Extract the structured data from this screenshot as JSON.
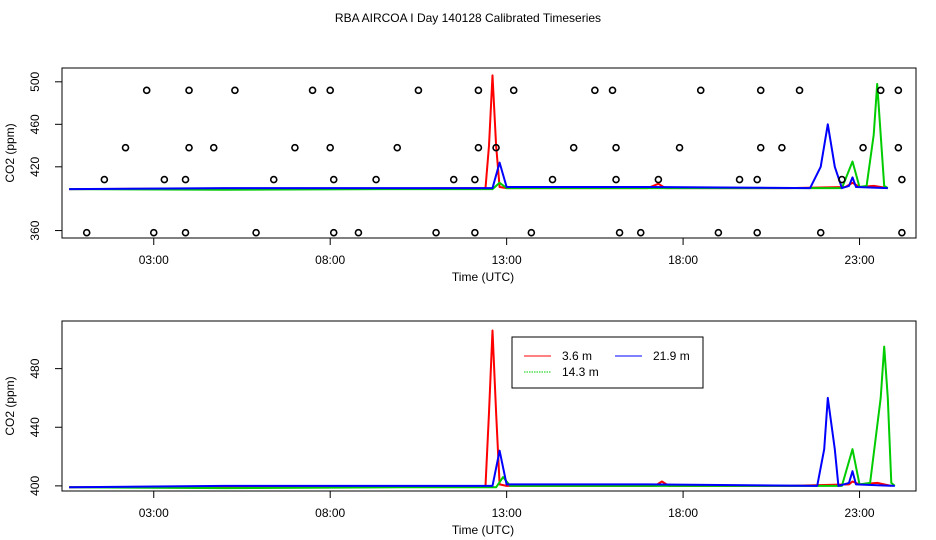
{
  "figure_title": "RBA AIRCOA I  Day 140128  Calibrated Timeseries",
  "colors": {
    "3.6 m": "#ff0000",
    "14.3 m": "#00cc00",
    "21.9 m": "#0000ff",
    "markers": "#000000"
  },
  "chart_data": [
    {
      "type": "line",
      "panel": "top",
      "xlabel": "Time (UTC)",
      "ylabel": "CO2 (ppm)",
      "xlim": [
        0.4,
        24.6
      ],
      "ylim": [
        353,
        513
      ],
      "x_ticks": [
        3,
        8,
        13,
        18,
        23
      ],
      "x_tick_labels": [
        "03:00",
        "08:00",
        "13:00",
        "18:00",
        "23:00"
      ],
      "y_ticks": [
        360,
        420,
        460,
        500
      ],
      "y_tick_labels": [
        "360",
        "420",
        "460",
        "500"
      ],
      "grid": false,
      "legend": null,
      "series": [
        {
          "name": "3.6 m",
          "color": "#ff0000",
          "points": [
            [
              0.6,
              399
            ],
            [
              5,
              399.5
            ],
            [
              10,
              399.5
            ],
            [
              12.4,
              400
            ],
            [
              12.5,
              440
            ],
            [
              12.6,
              506
            ],
            [
              12.7,
              440
            ],
            [
              12.8,
              401
            ],
            [
              13,
              400
            ],
            [
              17,
              400
            ],
            [
              17.3,
              404
            ],
            [
              17.5,
              400
            ],
            [
              21,
              400
            ],
            [
              22.6,
              401
            ],
            [
              22.8,
              405
            ],
            [
              23.0,
              401
            ],
            [
              23.4,
              402
            ],
            [
              23.8,
              400
            ]
          ]
        },
        {
          "name": "14.3 m",
          "color": "#00cc00",
          "points": [
            [
              0.6,
              399
            ],
            [
              5,
              398.5
            ],
            [
              10,
              399
            ],
            [
              12.6,
              399
            ],
            [
              12.8,
              405
            ],
            [
              13,
              400
            ],
            [
              17,
              400
            ],
            [
              22.5,
              400
            ],
            [
              22.8,
              425
            ],
            [
              23.0,
              401
            ],
            [
              23.2,
              402
            ],
            [
              23.4,
              450
            ],
            [
              23.5,
              498
            ],
            [
              23.6,
              450
            ],
            [
              23.7,
              402
            ],
            [
              23.8,
              400
            ]
          ]
        },
        {
          "name": "21.9 m",
          "color": "#0000ff",
          "points": [
            [
              0.6,
              399
            ],
            [
              5,
              400
            ],
            [
              10,
              400
            ],
            [
              12.6,
              400
            ],
            [
              12.8,
              424
            ],
            [
              13.0,
              401
            ],
            [
              17,
              401
            ],
            [
              21.6,
              400
            ],
            [
              21.9,
              420
            ],
            [
              22.1,
              460
            ],
            [
              22.3,
              420
            ],
            [
              22.5,
              400
            ],
            [
              22.7,
              402
            ],
            [
              22.8,
              410
            ],
            [
              22.9,
              401
            ],
            [
              23.8,
              400
            ]
          ]
        }
      ],
      "markers": [
        [
          1.1,
          358
        ],
        [
          1.6,
          408
        ],
        [
          2.2,
          438
        ],
        [
          2.8,
          492
        ],
        [
          3.0,
          358
        ],
        [
          3.3,
          408
        ],
        [
          3.9,
          358
        ],
        [
          3.9,
          408
        ],
        [
          4.0,
          438
        ],
        [
          4.0,
          492
        ],
        [
          4.7,
          438
        ],
        [
          5.3,
          492
        ],
        [
          5.9,
          358
        ],
        [
          6.4,
          408
        ],
        [
          7.0,
          438
        ],
        [
          7.5,
          492
        ],
        [
          8.0,
          492
        ],
        [
          8.0,
          438
        ],
        [
          8.1,
          408
        ],
        [
          8.1,
          358
        ],
        [
          8.8,
          358
        ],
        [
          9.3,
          408
        ],
        [
          9.9,
          438
        ],
        [
          10.5,
          492
        ],
        [
          11.0,
          358
        ],
        [
          11.5,
          408
        ],
        [
          12.1,
          408
        ],
        [
          12.1,
          358
        ],
        [
          12.2,
          438
        ],
        [
          12.2,
          492
        ],
        [
          12.7,
          438
        ],
        [
          13.2,
          492
        ],
        [
          13.7,
          358
        ],
        [
          14.3,
          408
        ],
        [
          14.9,
          438
        ],
        [
          15.5,
          492
        ],
        [
          16.0,
          492
        ],
        [
          16.1,
          438
        ],
        [
          16.1,
          408
        ],
        [
          16.2,
          358
        ],
        [
          16.8,
          358
        ],
        [
          17.3,
          408
        ],
        [
          17.9,
          438
        ],
        [
          18.5,
          492
        ],
        [
          19.0,
          358
        ],
        [
          19.6,
          408
        ],
        [
          20.1,
          358
        ],
        [
          20.1,
          408
        ],
        [
          20.2,
          438
        ],
        [
          20.2,
          492
        ],
        [
          20.8,
          438
        ],
        [
          21.3,
          492
        ],
        [
          21.9,
          358
        ],
        [
          22.5,
          408
        ],
        [
          23.1,
          438
        ],
        [
          23.6,
          492
        ],
        [
          24.1,
          492
        ],
        [
          24.1,
          438
        ],
        [
          24.2,
          408
        ],
        [
          24.2,
          358
        ]
      ]
    },
    {
      "type": "line",
      "panel": "bottom",
      "xlabel": "Time (UTC)",
      "ylabel": "CO2 (ppm)",
      "xlim": [
        0.4,
        24.6
      ],
      "ylim": [
        396.5,
        512.5
      ],
      "x_ticks": [
        3,
        8,
        13,
        18,
        23
      ],
      "x_tick_labels": [
        "03:00",
        "08:00",
        "13:00",
        "18:00",
        "23:00"
      ],
      "y_ticks": [
        400,
        440,
        480
      ],
      "y_tick_labels": [
        "400",
        "440",
        "480"
      ],
      "grid": false,
      "legend": "top-center",
      "series": [
        {
          "name": "3.6 m",
          "color": "#ff0000",
          "points": [
            [
              0.6,
              399
            ],
            [
              5,
              399.5
            ],
            [
              10,
              399.5
            ],
            [
              12.4,
              400
            ],
            [
              12.5,
              450
            ],
            [
              12.6,
              506
            ],
            [
              12.7,
              450
            ],
            [
              12.8,
              401
            ],
            [
              13,
              400
            ],
            [
              17.2,
              400
            ],
            [
              17.4,
              403
            ],
            [
              17.6,
              400
            ],
            [
              21,
              400
            ],
            [
              22.7,
              401
            ],
            [
              22.8,
              403
            ],
            [
              23.0,
              401
            ],
            [
              23.5,
              402
            ],
            [
              23.9,
              400
            ]
          ]
        },
        {
          "name": "14.3 m",
          "color": "#00cc00",
          "points": [
            [
              0.6,
              399
            ],
            [
              5,
              398.5
            ],
            [
              10,
              399
            ],
            [
              12.7,
              399
            ],
            [
              12.9,
              406
            ],
            [
              13.1,
              400
            ],
            [
              17,
              400
            ],
            [
              22.5,
              400
            ],
            [
              22.8,
              425
            ],
            [
              23.0,
              401
            ],
            [
              23.3,
              402
            ],
            [
              23.6,
              460
            ],
            [
              23.7,
              495
            ],
            [
              23.8,
              460
            ],
            [
              23.9,
              402
            ],
            [
              24.0,
              400
            ]
          ]
        },
        {
          "name": "21.9 m",
          "color": "#0000ff",
          "points": [
            [
              0.6,
              399
            ],
            [
              5,
              400
            ],
            [
              10,
              400
            ],
            [
              12.6,
              400
            ],
            [
              12.8,
              424
            ],
            [
              13.0,
              401
            ],
            [
              17,
              401
            ],
            [
              21.8,
              400
            ],
            [
              22.0,
              425
            ],
            [
              22.1,
              460
            ],
            [
              22.3,
              425
            ],
            [
              22.4,
              400
            ],
            [
              22.7,
              402
            ],
            [
              22.8,
              410
            ],
            [
              22.9,
              401
            ],
            [
              24.0,
              400
            ]
          ]
        }
      ],
      "legend_entries": [
        "3.6 m",
        "21.9 m",
        "14.3 m"
      ]
    }
  ]
}
